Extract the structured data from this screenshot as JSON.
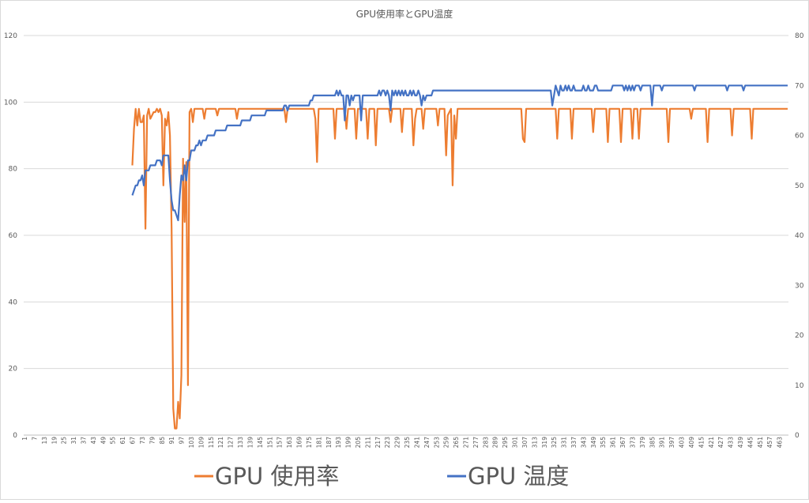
{
  "chart_data": {
    "type": "line",
    "title": "GPU使用率とGPU温度",
    "xlabel": "",
    "ylabel": "",
    "y_left": {
      "min": 0,
      "max": 120,
      "ticks": [
        0,
        20,
        40,
        60,
        80,
        100,
        120
      ]
    },
    "y_right": {
      "min": 0,
      "max": 80,
      "ticks": [
        0,
        10,
        20,
        30,
        40,
        50,
        60,
        70,
        80
      ]
    },
    "x_range": [
      1,
      468
    ],
    "x_tick_start": 1,
    "x_tick_step": 6,
    "x_tick_end": 463,
    "grid": true,
    "legend_position": "bottom",
    "series": [
      {
        "name": "GPU 使用率",
        "axis": "left",
        "color": "#ED7D31",
        "points": [
          [
            67,
            81
          ],
          [
            68,
            92
          ],
          [
            69,
            98
          ],
          [
            70,
            93
          ],
          [
            71,
            98
          ],
          [
            72,
            94
          ],
          [
            73,
            94
          ],
          [
            74,
            96
          ],
          [
            75,
            62
          ],
          [
            76,
            96
          ],
          [
            77,
            98
          ],
          [
            78,
            95
          ],
          [
            79,
            96
          ],
          [
            80,
            97
          ],
          [
            81,
            97
          ],
          [
            82,
            98
          ],
          [
            83,
            97
          ],
          [
            84,
            98
          ],
          [
            85,
            96
          ],
          [
            86,
            75
          ],
          [
            87,
            95
          ],
          [
            88,
            93
          ],
          [
            89,
            97
          ],
          [
            90,
            90
          ],
          [
            91,
            62
          ],
          [
            92,
            8
          ],
          [
            93,
            2
          ],
          [
            94,
            2
          ],
          [
            95,
            10
          ],
          [
            96,
            5
          ],
          [
            97,
            18
          ],
          [
            98,
            83
          ],
          [
            99,
            64
          ],
          [
            100,
            82
          ],
          [
            101,
            15
          ],
          [
            102,
            97
          ],
          [
            103,
            98
          ],
          [
            104,
            94
          ],
          [
            105,
            98
          ],
          [
            106,
            98
          ],
          [
            110,
            98
          ],
          [
            111,
            95
          ],
          [
            112,
            98
          ],
          [
            118,
            98
          ],
          [
            119,
            96
          ],
          [
            120,
            98
          ],
          [
            130,
            98
          ],
          [
            131,
            95
          ],
          [
            132,
            98
          ],
          [
            160,
            98
          ],
          [
            161,
            94
          ],
          [
            162,
            98
          ],
          [
            178,
            98
          ],
          [
            179,
            95
          ],
          [
            180,
            82
          ],
          [
            181,
            98
          ],
          [
            190,
            98
          ],
          [
            191,
            89
          ],
          [
            192,
            98
          ],
          [
            197,
            98
          ],
          [
            198,
            92
          ],
          [
            199,
            98
          ],
          [
            203,
            98
          ],
          [
            204,
            89
          ],
          [
            205,
            98
          ],
          [
            210,
            98
          ],
          [
            211,
            89
          ],
          [
            212,
            98
          ],
          [
            215,
            98
          ],
          [
            216,
            87
          ],
          [
            217,
            98
          ],
          [
            224,
            98
          ],
          [
            225,
            94
          ],
          [
            226,
            98
          ],
          [
            231,
            98
          ],
          [
            232,
            91
          ],
          [
            233,
            98
          ],
          [
            238,
            98
          ],
          [
            239,
            87
          ],
          [
            240,
            95
          ],
          [
            241,
            98
          ],
          [
            244,
            98
          ],
          [
            245,
            92
          ],
          [
            246,
            98
          ],
          [
            253,
            98
          ],
          [
            254,
            93
          ],
          [
            255,
            98
          ],
          [
            258,
            98
          ],
          [
            259,
            84
          ],
          [
            260,
            96
          ],
          [
            262,
            98
          ],
          [
            263,
            75
          ],
          [
            264,
            96
          ],
          [
            265,
            89
          ],
          [
            266,
            98
          ],
          [
            305,
            98
          ],
          [
            306,
            89
          ],
          [
            307,
            88
          ],
          [
            308,
            98
          ],
          [
            326,
            98
          ],
          [
            327,
            89
          ],
          [
            328,
            98
          ],
          [
            335,
            98
          ],
          [
            336,
            89
          ],
          [
            337,
            98
          ],
          [
            348,
            98
          ],
          [
            349,
            91
          ],
          [
            350,
            98
          ],
          [
            357,
            98
          ],
          [
            358,
            88
          ],
          [
            359,
            98
          ],
          [
            365,
            98
          ],
          [
            366,
            88
          ],
          [
            367,
            98
          ],
          [
            372,
            98
          ],
          [
            373,
            89
          ],
          [
            374,
            98
          ],
          [
            376,
            98
          ],
          [
            377,
            89
          ],
          [
            378,
            98
          ],
          [
            394,
            98
          ],
          [
            395,
            88
          ],
          [
            396,
            98
          ],
          [
            408,
            98
          ],
          [
            409,
            95
          ],
          [
            410,
            98
          ],
          [
            418,
            98
          ],
          [
            419,
            88
          ],
          [
            420,
            98
          ],
          [
            433,
            98
          ],
          [
            434,
            90
          ],
          [
            435,
            98
          ],
          [
            445,
            98
          ],
          [
            446,
            89
          ],
          [
            447,
            98
          ],
          [
            468,
            98
          ]
        ]
      },
      {
        "name": "GPU 温度",
        "axis": "right",
        "color": "#4472C4",
        "points": [
          [
            67,
            48
          ],
          [
            68,
            49
          ],
          [
            69,
            50
          ],
          [
            70,
            50
          ],
          [
            71,
            51
          ],
          [
            72,
            51
          ],
          [
            73,
            52
          ],
          [
            74,
            50
          ],
          [
            75,
            53
          ],
          [
            76,
            53
          ],
          [
            77,
            53
          ],
          [
            78,
            54
          ],
          [
            79,
            54
          ],
          [
            80,
            54
          ],
          [
            81,
            54
          ],
          [
            82,
            55
          ],
          [
            83,
            55
          ],
          [
            84,
            55
          ],
          [
            85,
            54
          ],
          [
            86,
            56
          ],
          [
            87,
            56
          ],
          [
            88,
            56
          ],
          [
            89,
            56
          ],
          [
            90,
            51
          ],
          [
            91,
            47
          ],
          [
            92,
            45
          ],
          [
            93,
            45
          ],
          [
            94,
            44
          ],
          [
            95,
            43
          ],
          [
            96,
            48
          ],
          [
            97,
            52
          ],
          [
            98,
            51
          ],
          [
            99,
            54
          ],
          [
            100,
            51
          ],
          [
            101,
            55
          ],
          [
            102,
            55
          ],
          [
            103,
            57
          ],
          [
            104,
            57
          ],
          [
            105,
            57
          ],
          [
            106,
            58
          ],
          [
            107,
            58
          ],
          [
            108,
            59
          ],
          [
            109,
            58
          ],
          [
            110,
            59
          ],
          [
            111,
            59
          ],
          [
            112,
            59
          ],
          [
            113,
            60
          ],
          [
            117,
            60
          ],
          [
            118,
            61
          ],
          [
            124,
            61
          ],
          [
            125,
            62
          ],
          [
            133,
            62
          ],
          [
            134,
            63
          ],
          [
            139,
            63
          ],
          [
            140,
            64
          ],
          [
            148,
            64
          ],
          [
            149,
            65
          ],
          [
            159,
            65
          ],
          [
            160,
            66
          ],
          [
            161,
            66
          ],
          [
            162,
            65
          ],
          [
            163,
            66
          ],
          [
            174,
            66
          ],
          [
            175,
            66
          ],
          [
            176,
            67
          ],
          [
            177,
            67
          ],
          [
            178,
            68
          ],
          [
            190,
            68
          ],
          [
            191,
            68
          ],
          [
            192,
            69
          ],
          [
            193,
            68
          ],
          [
            194,
            69
          ],
          [
            195,
            68
          ],
          [
            196,
            68
          ],
          [
            197,
            63
          ],
          [
            198,
            68
          ],
          [
            199,
            68
          ],
          [
            200,
            66
          ],
          [
            201,
            68
          ],
          [
            202,
            67
          ],
          [
            203,
            68
          ],
          [
            206,
            68
          ],
          [
            207,
            63
          ],
          [
            208,
            68
          ],
          [
            216,
            68
          ],
          [
            217,
            68
          ],
          [
            218,
            69
          ],
          [
            219,
            68
          ],
          [
            220,
            69
          ],
          [
            221,
            69
          ],
          [
            222,
            68
          ],
          [
            223,
            69
          ],
          [
            224,
            68
          ],
          [
            225,
            65
          ],
          [
            226,
            69
          ],
          [
            227,
            68
          ],
          [
            228,
            69
          ],
          [
            229,
            68
          ],
          [
            230,
            69
          ],
          [
            231,
            68
          ],
          [
            232,
            69
          ],
          [
            233,
            68
          ],
          [
            234,
            69
          ],
          [
            235,
            68
          ],
          [
            236,
            68
          ],
          [
            237,
            69
          ],
          [
            238,
            68
          ],
          [
            239,
            69
          ],
          [
            240,
            68
          ],
          [
            241,
            68
          ],
          [
            242,
            69
          ],
          [
            243,
            68
          ],
          [
            244,
            66
          ],
          [
            245,
            68
          ],
          [
            246,
            67
          ],
          [
            247,
            68
          ],
          [
            250,
            68
          ],
          [
            251,
            69
          ],
          [
            256,
            69
          ],
          [
            257,
            69
          ],
          [
            258,
            69
          ],
          [
            265,
            69
          ],
          [
            266,
            69
          ],
          [
            290,
            69
          ],
          [
            291,
            69
          ],
          [
            323,
            69
          ],
          [
            324,
            66
          ],
          [
            325,
            68
          ],
          [
            326,
            70
          ],
          [
            327,
            69
          ],
          [
            328,
            68
          ],
          [
            329,
            70
          ],
          [
            330,
            69
          ],
          [
            331,
            69
          ],
          [
            332,
            70
          ],
          [
            333,
            69
          ],
          [
            334,
            70
          ],
          [
            335,
            69
          ],
          [
            336,
            69
          ],
          [
            337,
            70
          ],
          [
            338,
            69
          ],
          [
            342,
            69
          ],
          [
            343,
            70
          ],
          [
            344,
            69
          ],
          [
            345,
            69
          ],
          [
            346,
            70
          ],
          [
            347,
            69
          ],
          [
            349,
            69
          ],
          [
            350,
            70
          ],
          [
            351,
            70
          ],
          [
            352,
            69
          ],
          [
            360,
            69
          ],
          [
            361,
            70
          ],
          [
            367,
            70
          ],
          [
            368,
            69
          ],
          [
            369,
            70
          ],
          [
            370,
            69
          ],
          [
            371,
            70
          ],
          [
            372,
            69
          ],
          [
            373,
            70
          ],
          [
            374,
            69
          ],
          [
            375,
            70
          ],
          [
            377,
            70
          ],
          [
            378,
            69
          ],
          [
            379,
            70
          ],
          [
            384,
            70
          ],
          [
            385,
            66
          ],
          [
            386,
            70
          ],
          [
            390,
            70
          ],
          [
            391,
            69
          ],
          [
            392,
            70
          ],
          [
            410,
            70
          ],
          [
            411,
            69
          ],
          [
            412,
            70
          ],
          [
            430,
            70
          ],
          [
            431,
            69
          ],
          [
            432,
            70
          ],
          [
            440,
            70
          ],
          [
            441,
            69
          ],
          [
            442,
            70
          ],
          [
            468,
            70
          ]
        ]
      }
    ]
  }
}
